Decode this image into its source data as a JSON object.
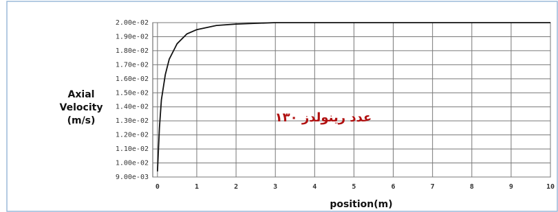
{
  "chart_data": {
    "type": "line",
    "y_label_lines": [
      "Axial",
      "Velocity",
      "(m/s)"
    ],
    "x_label": "position(m)",
    "annotation": "عدد رينولدز ١٣٠",
    "x": [
      0,
      0.05,
      0.1,
      0.2,
      0.3,
      0.5,
      0.75,
      1,
      1.5,
      2,
      3,
      4,
      5,
      6,
      7,
      8,
      9,
      10
    ],
    "series": [
      {
        "color": "#111111",
        "values": [
          0.0094,
          0.0125,
          0.0145,
          0.0163,
          0.0174,
          0.0185,
          0.0192,
          0.0195,
          0.0198,
          0.0199,
          0.02,
          0.02,
          0.02,
          0.02,
          0.02,
          0.02,
          0.02,
          0.02
        ]
      }
    ],
    "xlim": [
      -0.12,
      10
    ],
    "xticks": [
      0,
      1,
      2,
      3,
      4,
      5,
      6,
      7,
      8,
      9,
      10
    ],
    "ylim": [
      0.009,
      0.02
    ],
    "yticks": [
      {
        "value": 0.009,
        "label": "9.00e-03"
      },
      {
        "value": 0.01,
        "label": "1.00e-02"
      },
      {
        "value": 0.011,
        "label": "1.10e-02"
      },
      {
        "value": 0.012,
        "label": "1.20e-02"
      },
      {
        "value": 0.013,
        "label": "1.30e-02"
      },
      {
        "value": 0.014,
        "label": "1.40e-02"
      },
      {
        "value": 0.015,
        "label": "1.50e-02"
      },
      {
        "value": 0.016,
        "label": "1.60e-02"
      },
      {
        "value": 0.017,
        "label": "1.70e-02"
      },
      {
        "value": 0.018,
        "label": "1.80e-02"
      },
      {
        "value": 0.019,
        "label": "1.90e-02"
      },
      {
        "value": 0.02,
        "label": "2.00e-02"
      }
    ],
    "grid": true
  }
}
